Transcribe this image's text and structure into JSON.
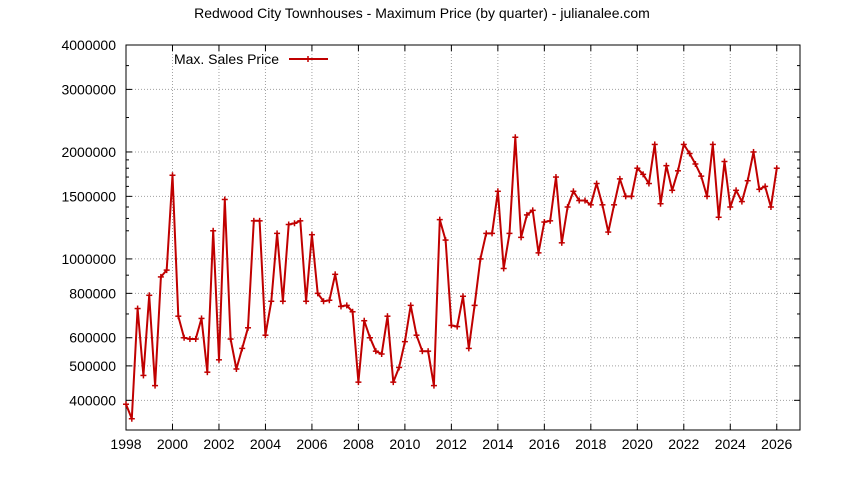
{
  "chart_data": {
    "type": "line",
    "title": "Redwood City Townhouses - Maximum Price (by quarter) - julianalee.com",
    "xlabel": "",
    "ylabel": "",
    "y_scale": "log",
    "xlim": [
      1998,
      2027
    ],
    "ylim": [
      330000,
      4000000
    ],
    "grid": true,
    "legend_position": "top-left",
    "x_ticks": [
      1998,
      2000,
      2002,
      2004,
      2006,
      2008,
      2010,
      2012,
      2014,
      2016,
      2018,
      2020,
      2022,
      2024,
      2026
    ],
    "y_ticks": [
      400000,
      500000,
      600000,
      800000,
      1000000,
      1500000,
      2000000,
      3000000,
      4000000
    ],
    "series": [
      {
        "name": "Max. Sales Price",
        "color": "#c00000",
        "marker": "plus",
        "x": [
          1998.0,
          1998.25,
          1998.5,
          1998.75,
          1999.0,
          1999.25,
          1999.5,
          1999.75,
          2000.0,
          2000.25,
          2000.5,
          2000.75,
          2001.0,
          2001.25,
          2001.5,
          2001.75,
          2002.0,
          2002.25,
          2002.5,
          2002.75,
          2003.0,
          2003.25,
          2003.5,
          2003.75,
          2004.0,
          2004.25,
          2004.5,
          2004.75,
          2005.0,
          2005.25,
          2005.5,
          2005.75,
          2006.0,
          2006.25,
          2006.5,
          2006.75,
          2007.0,
          2007.25,
          2007.5,
          2007.75,
          2008.0,
          2008.25,
          2008.5,
          2008.75,
          2009.0,
          2009.25,
          2009.5,
          2009.75,
          2010.0,
          2010.25,
          2010.5,
          2010.75,
          2011.0,
          2011.25,
          2011.5,
          2011.75,
          2012.0,
          2012.25,
          2012.5,
          2012.75,
          2013.0,
          2013.25,
          2013.5,
          2013.75,
          2014.0,
          2014.25,
          2014.5,
          2014.75,
          2015.0,
          2015.25,
          2015.5,
          2015.75,
          2016.0,
          2016.25,
          2016.5,
          2016.75,
          2017.0,
          2017.25,
          2017.5,
          2017.75,
          2018.0,
          2018.25,
          2018.5,
          2018.75,
          2019.0,
          2019.25,
          2019.5,
          2019.75,
          2020.0,
          2020.25,
          2020.5,
          2020.75,
          2021.0,
          2021.25,
          2021.5,
          2021.75,
          2022.0,
          2022.25,
          2022.5,
          2022.75,
          2023.0,
          2023.25,
          2023.5,
          2023.75,
          2024.0,
          2024.25,
          2024.5,
          2024.75,
          2025.0,
          2025.25,
          2025.5,
          2025.75,
          2026.0
        ],
        "values": [
          390000,
          355000,
          725000,
          470000,
          790000,
          440000,
          890000,
          930000,
          1720000,
          690000,
          600000,
          595000,
          595000,
          680000,
          480000,
          1200000,
          520000,
          1470000,
          595000,
          490000,
          560000,
          640000,
          1280000,
          1280000,
          610000,
          760000,
          1180000,
          760000,
          1250000,
          1260000,
          1280000,
          760000,
          1170000,
          800000,
          760000,
          765000,
          905000,
          735000,
          740000,
          710000,
          450000,
          670000,
          600000,
          550000,
          540000,
          690000,
          450000,
          495000,
          585000,
          740000,
          610000,
          550000,
          550000,
          440000,
          1290000,
          1130000,
          650000,
          645000,
          785000,
          560000,
          740000,
          1000000,
          1180000,
          1180000,
          1550000,
          940000,
          1180000,
          2200000,
          1150000,
          1330000,
          1370000,
          1040000,
          1270000,
          1280000,
          1700000,
          1110000,
          1400000,
          1550000,
          1460000,
          1460000,
          1420000,
          1630000,
          1420000,
          1190000,
          1420000,
          1680000,
          1500000,
          1500000,
          1800000,
          1730000,
          1630000,
          2100000,
          1430000,
          1830000,
          1560000,
          1770000,
          2100000,
          1980000,
          1850000,
          1710000,
          1500000,
          2100000,
          1310000,
          1880000,
          1400000,
          1560000,
          1450000,
          1660000,
          2000000,
          1570000,
          1600000,
          1400000,
          1800000
        ]
      }
    ]
  }
}
